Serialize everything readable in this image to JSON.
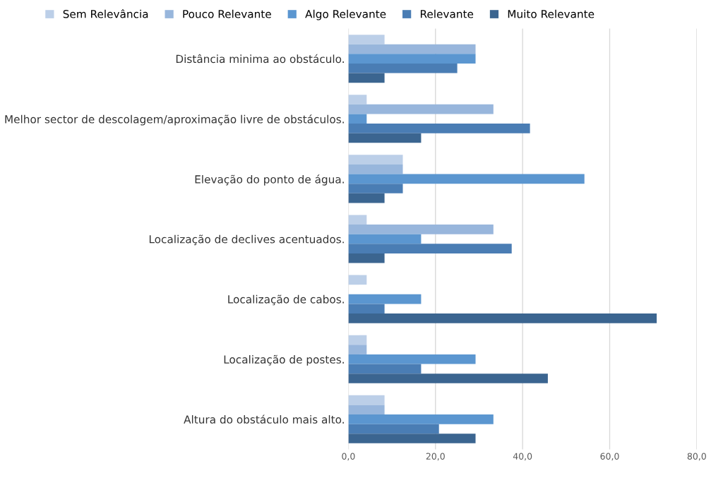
{
  "chart_data": {
    "type": "bar",
    "orientation": "horizontal",
    "categories": [
      "Distância minima ao obstáculo.",
      "Melhor sector de descolagem/aproximação livre de obstáculos.",
      "Elevação do ponto de água.",
      "Localização de declives acentuados.",
      "Localização de cabos.",
      "Localização de postes.",
      "Altura do obstáculo mais alto."
    ],
    "series": [
      {
        "name": "Sem Relevância",
        "color": "#bccfe8",
        "values": [
          8.3,
          4.2,
          12.5,
          4.2,
          4.2,
          4.2,
          8.3
        ]
      },
      {
        "name": "Pouco Relevante",
        "color": "#98b6dc",
        "values": [
          29.2,
          33.3,
          12.5,
          33.3,
          0,
          4.2,
          8.3
        ]
      },
      {
        "name": "Algo Relevante",
        "color": "#5b96d0",
        "values": [
          29.2,
          4.2,
          54.2,
          16.7,
          16.7,
          29.2,
          33.3
        ]
      },
      {
        "name": "Relevante",
        "color": "#4a7db4",
        "values": [
          25.0,
          41.7,
          12.5,
          37.5,
          8.3,
          16.7,
          20.8
        ]
      },
      {
        "name": "Muito Relevante",
        "color": "#3b6590",
        "values": [
          8.3,
          16.7,
          8.3,
          8.3,
          70.8,
          45.8,
          29.2
        ]
      }
    ],
    "xlim": [
      0,
      80
    ],
    "xticks": [
      {
        "value": 0,
        "label": "0,0"
      },
      {
        "value": 20,
        "label": "20,0"
      },
      {
        "value": 40,
        "label": "40,0"
      },
      {
        "value": 60,
        "label": "60,0"
      },
      {
        "value": 80,
        "label": "80,0"
      }
    ],
    "grid": "x",
    "legend": "top"
  }
}
